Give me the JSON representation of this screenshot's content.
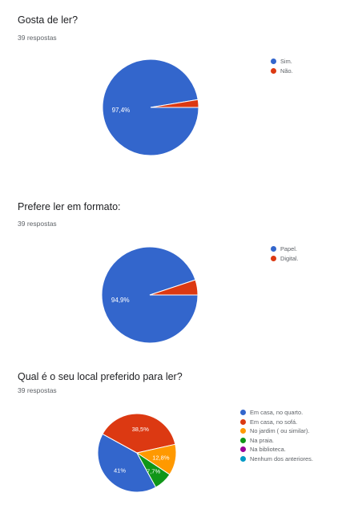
{
  "questions": [
    {
      "title": "Gosta de ler?",
      "responses": "39 respostas"
    },
    {
      "title": "Prefere ler em formato:",
      "responses": "39 respostas"
    },
    {
      "title": "Qual é o seu local preferido para ler?",
      "responses": "39 respostas"
    }
  ],
  "chart_data": [
    {
      "type": "pie",
      "title": "Gosta de ler?",
      "legend_position": "right",
      "slices": [
        {
          "label": "Sim.",
          "value": 97.4,
          "display": "97,4%",
          "color": "#3366cc"
        },
        {
          "label": "Não.",
          "value": 2.6,
          "display": "",
          "color": "#dc3912"
        }
      ]
    },
    {
      "type": "pie",
      "title": "Prefere ler em formato:",
      "legend_position": "right",
      "slices": [
        {
          "label": "Papel.",
          "value": 94.9,
          "display": "94,9%",
          "color": "#3366cc"
        },
        {
          "label": "Digital.",
          "value": 5.1,
          "display": "",
          "color": "#dc3912"
        }
      ]
    },
    {
      "type": "pie",
      "title": "Qual é o seu local preferido para ler?",
      "legend_position": "right",
      "slices": [
        {
          "label": "Em casa, no quarto.",
          "value": 41,
          "display": "41%",
          "color": "#3366cc"
        },
        {
          "label": "Em casa, no sofá.",
          "value": 38.5,
          "display": "38,5%",
          "color": "#dc3912"
        },
        {
          "label": "No jardim ( ou similar).",
          "value": 12.8,
          "display": "12,8%",
          "color": "#ff9900"
        },
        {
          "label": "Na praia.",
          "value": 7.7,
          "display": "7,7%",
          "color": "#109618"
        },
        {
          "label": "Na biblioteca.",
          "value": 0,
          "display": "",
          "color": "#990099"
        },
        {
          "label": "Nenhum dos anteriores.",
          "value": 0,
          "display": "",
          "color": "#0099c6"
        }
      ]
    }
  ]
}
